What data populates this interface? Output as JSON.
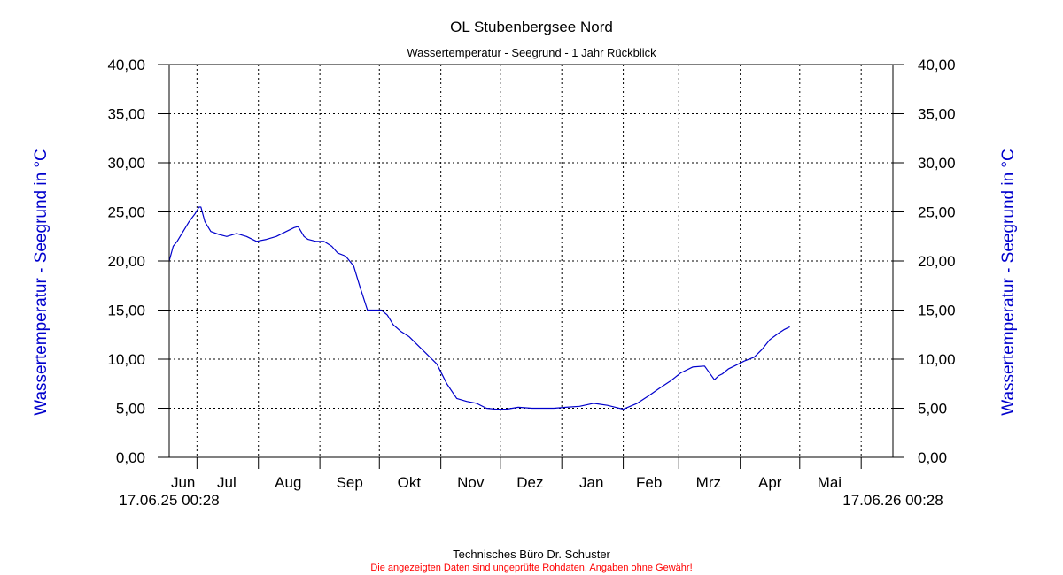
{
  "chart_data": {
    "type": "line",
    "title": "OL Stubenbergsee Nord",
    "subtitle": "Wassertemperatur - Seegrund - 1 Jahr Rückblick",
    "ylabel_left": "Wassertemperatur - Seegrund in °C",
    "ylabel_right": "Wassertemperatur - Seegrund in °C",
    "ylim": [
      0,
      40
    ],
    "y_ticks": [
      "0,00",
      "5,00",
      "10,00",
      "15,00",
      "20,00",
      "25,00",
      "30,00",
      "35,00",
      "40,00"
    ],
    "x_start_label": "17.06.25 00:28",
    "x_end_label": "17.06.26 00:28",
    "x_range": [
      "2025-06-17",
      "2026-06-17"
    ],
    "month_boundaries": [
      "2025-07-01",
      "2025-08-01",
      "2025-09-01",
      "2025-10-01",
      "2025-11-01",
      "2025-12-01",
      "2026-01-01",
      "2026-02-01",
      "2026-03-01",
      "2026-04-01",
      "2026-05-01",
      "2026-06-01"
    ],
    "month_labels": [
      {
        "label": "Jun",
        "date": "2025-06-24"
      },
      {
        "label": "Jul",
        "date": "2025-07-16"
      },
      {
        "label": "Aug",
        "date": "2025-08-16"
      },
      {
        "label": "Sep",
        "date": "2025-09-16"
      },
      {
        "label": "Okt",
        "date": "2025-10-16"
      },
      {
        "label": "Nov",
        "date": "2025-11-16"
      },
      {
        "label": "Dez",
        "date": "2025-12-16"
      },
      {
        "label": "Jan",
        "date": "2026-01-16"
      },
      {
        "label": "Feb",
        "date": "2026-02-14"
      },
      {
        "label": "Mrz",
        "date": "2026-03-16"
      },
      {
        "label": "Apr",
        "date": "2026-04-16"
      },
      {
        "label": "Mai",
        "date": "2026-05-16"
      }
    ],
    "grid": true,
    "line_color": "#0000cc",
    "series": [
      {
        "x": [
          "2025-06-17",
          "2025-06-19",
          "2025-06-21",
          "2025-06-24",
          "2025-06-27",
          "2025-06-30",
          "2025-07-02",
          "2025-07-03",
          "2025-07-05",
          "2025-07-08",
          "2025-07-12",
          "2025-07-16",
          "2025-07-21",
          "2025-07-26",
          "2025-07-31",
          "2025-08-05",
          "2025-08-10",
          "2025-08-15",
          "2025-08-19",
          "2025-08-21",
          "2025-08-24",
          "2025-08-26",
          "2025-08-30",
          "2025-09-03",
          "2025-09-07",
          "2025-09-10",
          "2025-09-14",
          "2025-09-18",
          "2025-09-21",
          "2025-09-25",
          "2025-09-29",
          "2025-10-02",
          "2025-10-05",
          "2025-10-08",
          "2025-10-12",
          "2025-10-16",
          "2025-10-20",
          "2025-10-25",
          "2025-10-30",
          "2025-11-04",
          "2025-11-09",
          "2025-11-14",
          "2025-11-19",
          "2025-11-24",
          "2025-11-29",
          "2025-12-04",
          "2025-12-10",
          "2025-12-17",
          "2025-12-21",
          "2025-12-28",
          "2026-01-03",
          "2026-01-10",
          "2026-01-17",
          "2026-01-24",
          "2026-02-01",
          "2026-02-08",
          "2026-02-14",
          "2026-02-19",
          "2026-02-25",
          "2026-03-02",
          "2026-03-08",
          "2026-03-14",
          "2026-03-19",
          "2026-03-21",
          "2026-03-23",
          "2026-03-26",
          "2026-03-29",
          "2026-04-03",
          "2026-04-08",
          "2026-04-12",
          "2026-04-16",
          "2026-04-20",
          "2026-04-23",
          "2026-04-26"
        ],
        "y": [
          20.0,
          21.5,
          22.0,
          23.0,
          24.0,
          24.8,
          25.5,
          25.5,
          24.0,
          23.0,
          22.7,
          22.5,
          22.8,
          22.5,
          22.0,
          22.2,
          22.5,
          23.0,
          23.4,
          23.5,
          22.5,
          22.2,
          22.0,
          22.0,
          21.5,
          20.8,
          20.5,
          19.5,
          17.5,
          15.0,
          15.0,
          15.0,
          14.5,
          13.5,
          12.8,
          12.3,
          11.5,
          10.5,
          9.5,
          7.5,
          6.0,
          5.7,
          5.5,
          5.0,
          4.9,
          4.9,
          5.1,
          5.0,
          5.0,
          5.0,
          5.1,
          5.2,
          5.5,
          5.3,
          4.9,
          5.5,
          6.3,
          7.0,
          7.8,
          8.6,
          9.2,
          9.3,
          7.9,
          8.3,
          8.5,
          9.0,
          9.3,
          9.8,
          10.2,
          11.0,
          12.0,
          12.6,
          13.0,
          13.3
        ]
      }
    ]
  },
  "footer": {
    "company": "Technisches Büro Dr. Schuster",
    "disclaimer": "Die angezeigten Daten sind ungeprüfte Rohdaten, Angaben ohne Gewähr!"
  }
}
